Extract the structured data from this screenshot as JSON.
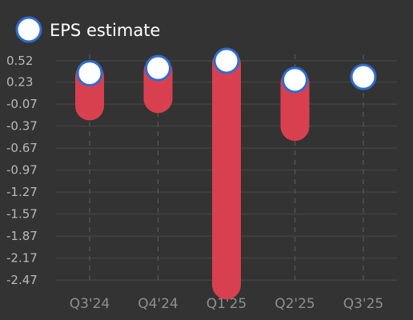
{
  "chart_data": {
    "type": "bar",
    "categories": [
      "Q3'24",
      "Q4'24",
      "Q1'25",
      "Q2'25",
      "Q3'25"
    ],
    "series": [
      {
        "name": "EPS estimate",
        "type": "scatter",
        "values": [
          0.35,
          0.42,
          0.52,
          0.26,
          0.3
        ]
      },
      {
        "type": "range-bar",
        "low": [
          -0.14,
          -0.04,
          -2.58,
          -0.42,
          null
        ],
        "high": [
          0.35,
          0.42,
          0.52,
          0.26,
          null
        ]
      }
    ],
    "y_ticks": [
      "0.52",
      "0.23",
      "-0.07",
      "-0.37",
      "-0.67",
      "-0.97",
      "-1.27",
      "-1.57",
      "-1.87",
      "-2.17",
      "-2.47"
    ],
    "y_tick_values": [
      0.52,
      0.23,
      -0.07,
      -0.37,
      -0.67,
      -0.97,
      -1.27,
      -1.57,
      -1.87,
      -2.17,
      -2.47
    ],
    "ylim": [
      -2.62,
      0.56
    ],
    "legend": {
      "position": "top-left",
      "entries": [
        "EPS estimate"
      ]
    },
    "grid": {
      "horizontal": true,
      "vertical_dashed": true
    },
    "colors": {
      "background": "#333333",
      "bar": "#d9404f",
      "marker_fill": "#ffffff",
      "marker_stroke": "#2f6ccf",
      "grid": "#4a4a4a",
      "vgrid": "#5c5c5c"
    }
  }
}
